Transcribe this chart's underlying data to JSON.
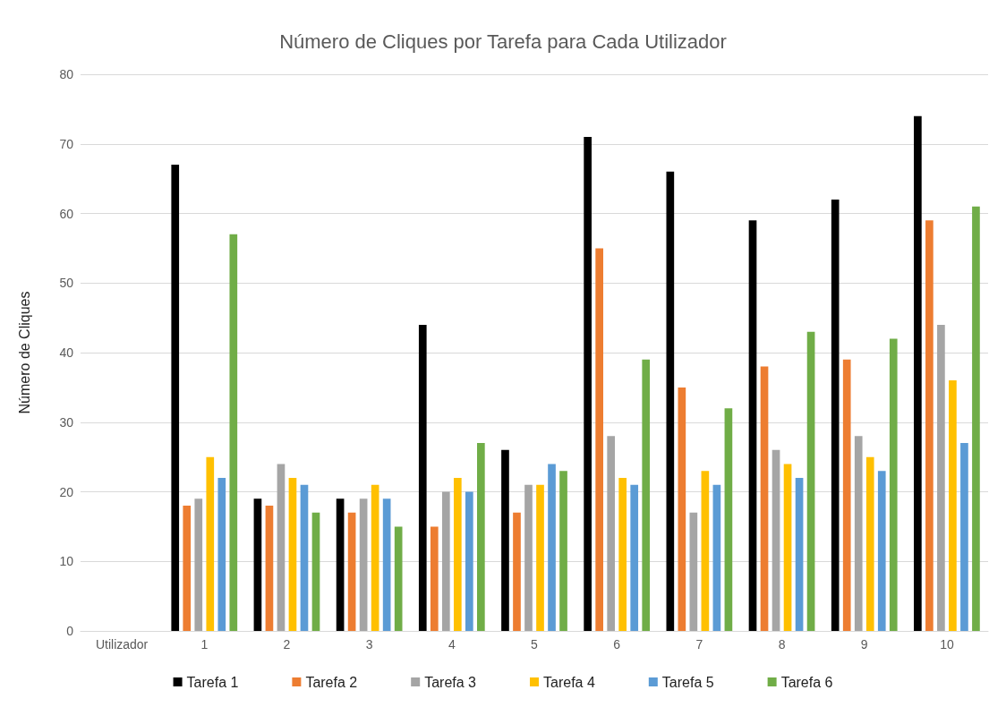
{
  "chart_data": {
    "type": "bar",
    "title": "Número de Cliques por Tarefa para Cada Utilizador",
    "ylabel": "Número de Cliques",
    "categories": [
      "Utilizador",
      "1",
      "2",
      "3",
      "4",
      "5",
      "6",
      "7",
      "8",
      "9",
      "10"
    ],
    "series": [
      {
        "name": "Tarefa 1",
        "color": "#000000",
        "values": [
          null,
          67,
          19,
          19,
          44,
          26,
          71,
          66,
          59,
          62,
          74
        ]
      },
      {
        "name": "Tarefa 2",
        "color": "#ed7d31",
        "values": [
          null,
          18,
          18,
          17,
          15,
          17,
          55,
          35,
          38,
          39,
          59
        ]
      },
      {
        "name": "Tarefa 3",
        "color": "#a5a5a5",
        "values": [
          null,
          19,
          24,
          19,
          20,
          21,
          28,
          17,
          26,
          28,
          44
        ]
      },
      {
        "name": "Tarefa 4",
        "color": "#ffc000",
        "values": [
          null,
          25,
          22,
          21,
          22,
          21,
          22,
          23,
          24,
          25,
          36
        ]
      },
      {
        "name": "Tarefa 5",
        "color": "#5b9bd5",
        "values": [
          null,
          22,
          21,
          19,
          20,
          24,
          21,
          21,
          22,
          23,
          27
        ]
      },
      {
        "name": "Tarefa 6",
        "color": "#70ad47",
        "values": [
          null,
          57,
          17,
          15,
          27,
          23,
          39,
          32,
          43,
          42,
          61
        ]
      }
    ],
    "ylim": [
      0,
      80
    ],
    "yticks": [
      0,
      10,
      20,
      30,
      40,
      50,
      60,
      70,
      80
    ],
    "grid": "y",
    "legend": "bottom"
  }
}
